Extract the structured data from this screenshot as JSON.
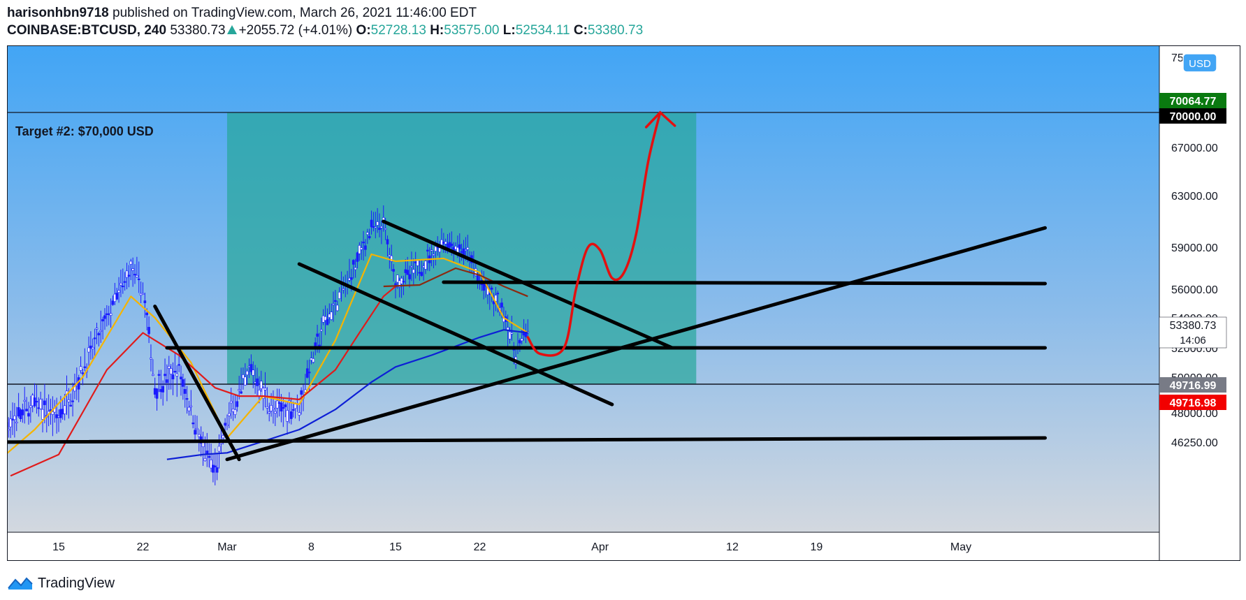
{
  "header": {
    "author": "harisonhbn9718",
    "published_text": " published on TradingView.com, March 26, 2021 11:46:00 EDT",
    "symbol": "COINBASE:BTCUSD, 240",
    "last": "53380.73",
    "change": "+2055.72 (+4.01%)",
    "open_label": "O:",
    "open": "52728.13",
    "high_label": "H:",
    "high": "53575.00",
    "low_label": "L:",
    "low": "52534.11",
    "close_label": "C:",
    "close": "53380.73"
  },
  "footer": {
    "brand": "TradingView"
  },
  "colors": {
    "sky_top": "#42a5f5",
    "sky_bottom": "#d0d7df",
    "target_zone": "#26a69a",
    "candle": "#1a1aff",
    "ema_fast": "#f5b400",
    "ema_mid": "#e01b1b",
    "ema_brown": "#8b2a10",
    "ema_blue": "#0d1fd6",
    "drawing": "#000000",
    "arrow": "#e31010",
    "tag_green": "#0a7a10",
    "tag_red": "#f20000",
    "tag_gray": "#787b86",
    "tag_black": "#000000",
    "up": "#26a69a"
  },
  "chart_data": {
    "type": "line",
    "title": "COINBASE:BTCUSD, 240",
    "annotations": [
      "Target #2: $70,000 USD"
    ],
    "currency": "USD",
    "x_ticks": [
      "15",
      "22",
      "Mar",
      "8",
      "15",
      "22",
      "Apr",
      "12",
      "19",
      "May"
    ],
    "x_tick_dates": [
      "2021-02-15",
      "2021-02-22",
      "2021-03-01",
      "2021-03-08",
      "2021-03-15",
      "2021-03-22",
      "2021-04-01",
      "2021-04-12",
      "2021-04-19",
      "2021-05-01"
    ],
    "y_ticks": [
      "75",
      "67000.00",
      "63000.00",
      "59000.00",
      "56000.00",
      "54000.00",
      "52000.00",
      "50000.00",
      "48000.00",
      "46250.00"
    ],
    "y_tick_values": [
      75000,
      67000,
      63000,
      59000,
      56000,
      54000,
      52000,
      50000,
      48000,
      46250
    ],
    "price_tags": [
      {
        "label": "70064.77",
        "style": "green"
      },
      {
        "label": "70000.00",
        "style": "black"
      },
      {
        "label": "53380.73",
        "sub": "14:06",
        "style": "white"
      },
      {
        "label": "49716.99",
        "style": "gray"
      },
      {
        "label": "49716.98",
        "style": "red"
      }
    ],
    "target_zone": {
      "from": "2021-03-01",
      "to": "2021-04-09",
      "top": 70000,
      "bottom": 49717
    },
    "series": [
      {
        "kind": "price",
        "x": [
          "2021-02-09",
          "2021-02-11",
          "2021-02-13",
          "2021-02-15",
          "2021-02-17",
          "2021-02-19",
          "2021-02-21",
          "2021-02-22",
          "2021-02-23",
          "2021-02-25",
          "2021-02-27",
          "2021-02-28",
          "2021-03-01",
          "2021-03-03",
          "2021-03-05",
          "2021-03-07",
          "2021-03-09",
          "2021-03-11",
          "2021-03-13",
          "2021-03-14",
          "2021-03-15",
          "2021-03-17",
          "2021-03-19",
          "2021-03-20",
          "2021-03-21",
          "2021-03-22",
          "2021-03-23",
          "2021-03-24",
          "2021-03-25",
          "2021-03-26"
        ],
        "values": [
          46000,
          47500,
          48500,
          47800,
          50500,
          54000,
          57500,
          56000,
          49500,
          50500,
          45800,
          44500,
          47500,
          50500,
          48000,
          48500,
          53500,
          56500,
          60500,
          60800,
          56500,
          57500,
          59500,
          59000,
          58500,
          56500,
          55500,
          54500,
          51500,
          53380
        ]
      },
      {
        "kind": "ema-fast",
        "x": [
          "2021-02-09",
          "2021-02-13",
          "2021-02-17",
          "2021-02-21",
          "2021-02-23",
          "2021-02-26",
          "2021-03-01",
          "2021-03-04",
          "2021-03-07",
          "2021-03-10",
          "2021-03-13",
          "2021-03-15",
          "2021-03-19",
          "2021-03-22",
          "2021-03-24",
          "2021-03-26"
        ],
        "values": [
          44500,
          47000,
          50000,
          55500,
          54000,
          51000,
          46500,
          49000,
          48500,
          52500,
          58500,
          58000,
          58200,
          57200,
          54000,
          53000
        ]
      },
      {
        "kind": "ema-mid",
        "x": [
          "2021-02-11",
          "2021-02-15",
          "2021-02-19",
          "2021-02-22",
          "2021-02-25",
          "2021-02-28",
          "2021-03-02",
          "2021-03-04",
          "2021-03-07",
          "2021-03-10",
          "2021-03-12",
          "2021-03-14",
          "2021-03-15"
        ],
        "values": [
          44200,
          45500,
          50500,
          53000,
          51500,
          49500,
          49000,
          49000,
          48800,
          50500,
          53000,
          55500,
          56200
        ]
      },
      {
        "kind": "ema-brown",
        "x": [
          "2021-03-14",
          "2021-03-17",
          "2021-03-20",
          "2021-03-22",
          "2021-03-24",
          "2021-03-26"
        ],
        "values": [
          56200,
          56300,
          57500,
          57000,
          56200,
          55500
        ]
      },
      {
        "kind": "ema-blue",
        "x": [
          "2021-02-24",
          "2021-02-27",
          "2021-03-01",
          "2021-03-04",
          "2021-03-07",
          "2021-03-10",
          "2021-03-13",
          "2021-03-15",
          "2021-03-18",
          "2021-03-22",
          "2021-03-24",
          "2021-03-26"
        ],
        "values": [
          45200,
          45500,
          45600,
          46300,
          47000,
          48200,
          49800,
          50700,
          51500,
          52700,
          53200,
          53000
        ]
      }
    ],
    "drawings": [
      {
        "kind": "trendline",
        "from": [
          "2021-02-09",
          46250
        ],
        "to": [
          "2021-05-08",
          46500
        ]
      },
      {
        "kind": "trendline",
        "from": [
          "2021-02-24",
          52000
        ],
        "to": [
          "2021-05-08",
          52000
        ]
      },
      {
        "kind": "trendline",
        "from": [
          "2021-03-19",
          56500
        ],
        "to": [
          "2021-05-08",
          56400
        ]
      },
      {
        "kind": "trendline",
        "from": [
          "2021-03-01",
          45200
        ],
        "to": [
          "2021-05-08",
          60500
        ]
      },
      {
        "kind": "trendline",
        "from": [
          "2021-02-23",
          54800
        ],
        "to": [
          "2021-03-02",
          45200
        ]
      },
      {
        "kind": "trendline",
        "from": [
          "2021-03-07",
          57800
        ],
        "to": [
          "2021-04-02",
          48500
        ]
      },
      {
        "kind": "trendline",
        "from": [
          "2021-03-14",
          61000
        ],
        "to": [
          "2021-04-07",
          52000
        ]
      }
    ],
    "projection": {
      "kind": "arrow",
      "x": [
        "2021-03-26",
        "2021-03-27",
        "2021-03-29",
        "2021-03-30",
        "2021-03-31",
        "2021-04-01",
        "2021-04-02",
        "2021-04-03",
        "2021-04-04",
        "2021-04-05",
        "2021-04-06"
      ],
      "values": [
        52700,
        51600,
        52000,
        56000,
        59000,
        58800,
        56800,
        57200,
        60000,
        65800,
        70000
      ]
    }
  }
}
